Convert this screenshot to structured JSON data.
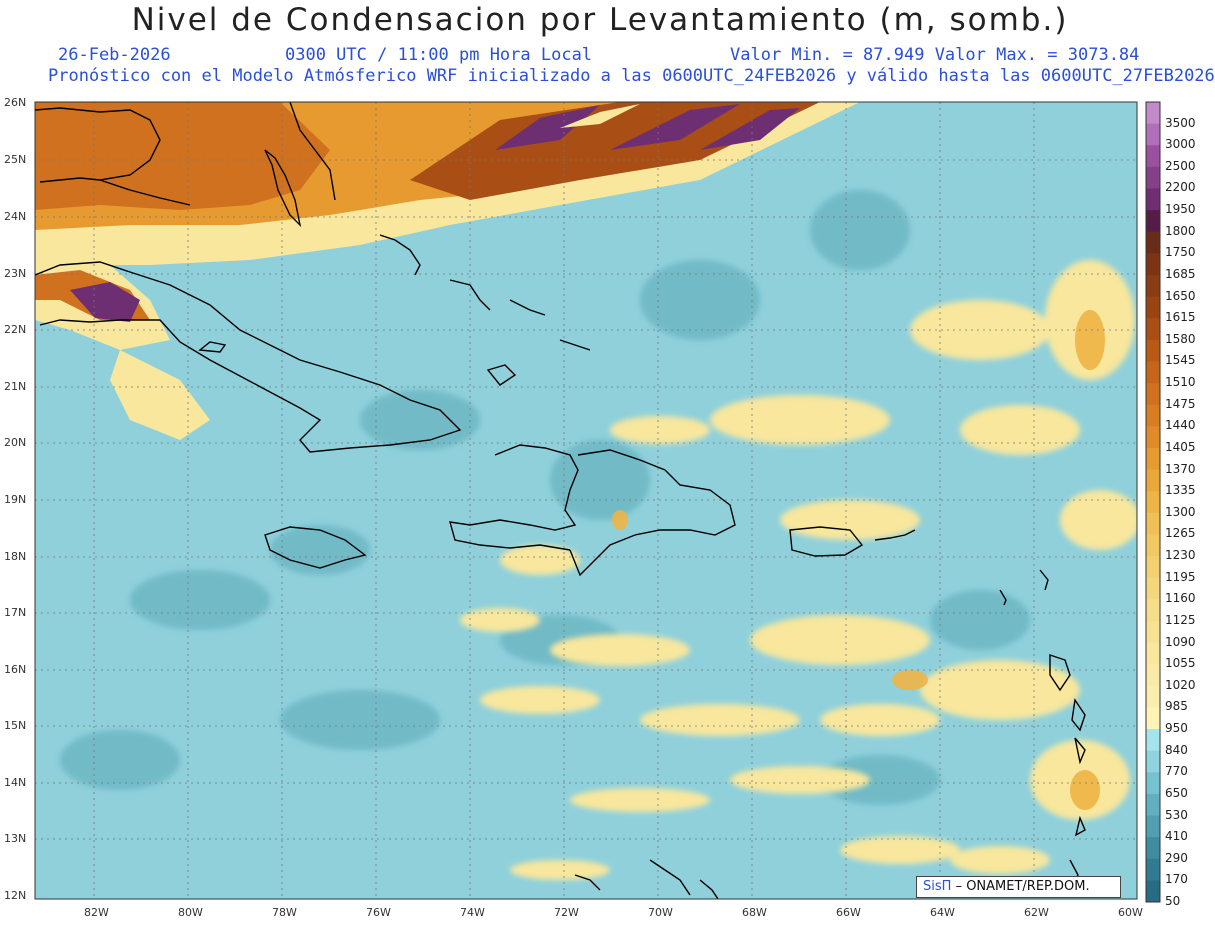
{
  "header": {
    "title": "Nivel de Condensacion por Levantamiento (m, somb.)",
    "date": "26-Feb-2026",
    "time": "0300 UTC / 11:00 pm Hora Local",
    "min_max": "Valor Min. = 87.949  Valor Max. = 3073.84",
    "description": "Pronóstico con el Modelo Atmósferico WRF inicializado a las 0600UTC_24FEB2026 y válido hasta las  0600UTC_27FEB2026"
  },
  "axes": {
    "lat_labels": [
      "26N",
      "25N",
      "24N",
      "23N",
      "22N",
      "21N",
      "20N",
      "19N",
      "18N",
      "17N",
      "16N",
      "15N",
      "14N",
      "13N",
      "12N"
    ],
    "lon_labels": [
      "82W",
      "80W",
      "78W",
      "76W",
      "74W",
      "72W",
      "70W",
      "68W",
      "66W",
      "64W",
      "62W",
      "60W"
    ]
  },
  "colorbar": {
    "levels": [
      "3500",
      "3000",
      "2500",
      "2200",
      "1950",
      "1800",
      "1750",
      "1685",
      "1650",
      "1615",
      "1580",
      "1545",
      "1510",
      "1475",
      "1440",
      "1405",
      "1370",
      "1335",
      "1300",
      "1265",
      "1230",
      "1195",
      "1160",
      "1125",
      "1090",
      "1055",
      "1020",
      "985",
      "950",
      "840",
      "770",
      "650",
      "530",
      "410",
      "290",
      "170",
      "50"
    ],
    "colors": [
      "#c28ac8",
      "#b06fb8",
      "#9b4f9f",
      "#864089",
      "#6e2f72",
      "#561c48",
      "#6a2c1a",
      "#7c3414",
      "#8a3c14",
      "#9a4414",
      "#a94e14",
      "#b85a16",
      "#c4651a",
      "#cf711e",
      "#d87d22",
      "#e08a28",
      "#e69a30",
      "#eaa83a",
      "#eeb446",
      "#f0bf55",
      "#f2c862",
      "#f3d06f",
      "#f4d77c",
      "#f6dd88",
      "#f7e293",
      "#f8e79d",
      "#f9eba6",
      "#faeeae",
      "#fdf3b5",
      "#a6e4ec",
      "#8ed3de",
      "#77c2cf",
      "#62b0bf",
      "#509eb0",
      "#3f8ca1",
      "#317c92",
      "#266d84"
    ]
  },
  "credit": {
    "logo": "SisΠ",
    "text": "– ONAMET/REP.DOM."
  },
  "map_colors": {
    "ocean_base": "#8fd0db",
    "ocean_dark": "#6ab5c2",
    "ocean_light": "#a6e4ec",
    "yellow": "#f8e79d",
    "orange": "#e69a30",
    "brown": "#a94e14",
    "purple": "#6e2f72",
    "coast": "#000000"
  }
}
